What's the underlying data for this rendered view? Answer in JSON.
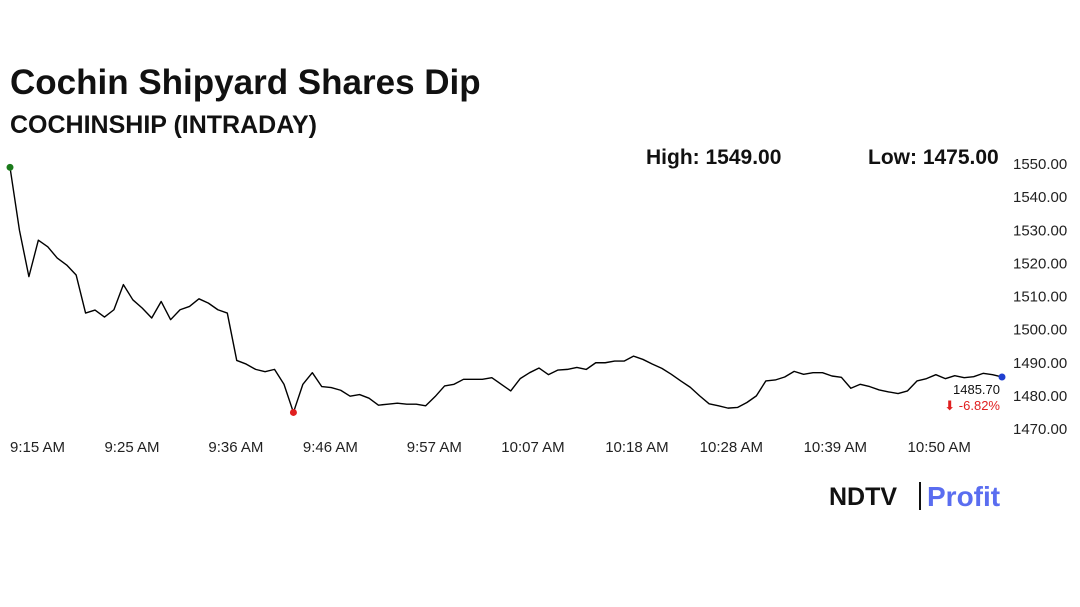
{
  "chart_data": {
    "type": "line",
    "title": "Cochin Shipyard Shares Dip",
    "subtitle": "COCHINSHIP (INTRADAY)",
    "high_text": "High: 1549.00",
    "low_text": "Low: 1475.00",
    "last_label": "1485.70",
    "change_label": "⬇ -6.82%",
    "brand": {
      "name": "NDTV",
      "product": "Profit"
    },
    "x": [
      "9:15 AM",
      "9:16 AM",
      "9:17 AM",
      "9:18 AM",
      "9:19 AM",
      "9:20 AM",
      "9:21 AM",
      "9:22 AM",
      "9:23 AM",
      "9:24 AM",
      "9:25 AM",
      "9:26 AM",
      "9:27 AM",
      "9:28 AM",
      "9:29 AM",
      "9:30 AM",
      "9:31 AM",
      "9:32 AM",
      "9:33 AM",
      "9:34 AM",
      "9:35 AM",
      "9:36 AM",
      "9:37 AM",
      "9:38 AM",
      "9:39 AM",
      "9:40 AM",
      "9:41 AM",
      "9:42 AM",
      "9:43 AM",
      "9:44 AM",
      "9:45 AM",
      "9:46 AM",
      "9:47 AM",
      "9:48 AM",
      "9:49 AM",
      "9:50 AM",
      "9:51 AM",
      "9:52 AM",
      "9:53 AM",
      "9:54 AM",
      "9:55 AM",
      "9:56 AM",
      "9:57 AM",
      "9:58 AM",
      "9:59 AM",
      "10:00 AM",
      "10:01 AM",
      "10:02 AM",
      "10:03 AM",
      "10:04 AM",
      "10:05 AM",
      "10:06 AM",
      "10:07 AM",
      "10:08 AM",
      "10:09 AM",
      "10:10 AM",
      "10:11 AM",
      "10:12 AM",
      "10:13 AM",
      "10:14 AM",
      "10:15 AM",
      "10:16 AM",
      "10:17 AM",
      "10:18 AM",
      "10:19 AM",
      "10:20 AM",
      "10:21 AM",
      "10:22 AM",
      "10:23 AM",
      "10:24 AM",
      "10:25 AM",
      "10:26 AM",
      "10:27 AM",
      "10:28 AM",
      "10:29 AM",
      "10:30 AM",
      "10:31 AM",
      "10:32 AM",
      "10:33 AM",
      "10:34 AM",
      "10:35 AM",
      "10:36 AM",
      "10:37 AM",
      "10:38 AM",
      "10:39 AM",
      "10:40 AM",
      "10:41 AM",
      "10:42 AM",
      "10:43 AM",
      "10:44 AM",
      "10:45 AM",
      "10:46 AM",
      "10:47 AM",
      "10:48 AM",
      "10:49 AM",
      "10:50 AM",
      "10:51 AM",
      "10:52 AM",
      "10:53 AM",
      "10:54 AM",
      "10:55 AM",
      "10:56 AM",
      "10:57 AM",
      "10:58 AM",
      "10:59 AM",
      "11:00 AM"
    ],
    "series": [
      {
        "name": "COCHINSHIP",
        "color": "#000000",
        "values": [
          1549,
          1530,
          1516,
          1527,
          1525,
          1521.6,
          1519.5,
          1516.5,
          1505,
          1505.9,
          1503.8,
          1506,
          1513.6,
          1509,
          1506.5,
          1503.5,
          1508.5,
          1503,
          1506,
          1507,
          1509.3,
          1508,
          1506,
          1505,
          1490.7,
          1489.6,
          1488,
          1487.3,
          1488,
          1483.5,
          1475,
          1483.5,
          1487,
          1482.8,
          1482.5,
          1481.7,
          1479.9,
          1480.4,
          1479.3,
          1477.2,
          1477.5,
          1477.8,
          1477.5,
          1477.5,
          1477,
          1479.8,
          1483,
          1483.5,
          1485,
          1485,
          1485,
          1485.5,
          1483.5,
          1481.5,
          1485.2,
          1487,
          1488.4,
          1486.4,
          1487.8,
          1488,
          1488.6,
          1488,
          1490,
          1490,
          1490.5,
          1490.5,
          1492,
          1491,
          1489.6,
          1488.3,
          1486.5,
          1484.5,
          1482.6,
          1480,
          1477.6,
          1477,
          1476.3,
          1476.5,
          1478,
          1480,
          1484.5,
          1484.8,
          1485.7,
          1487.4,
          1486.5,
          1487,
          1487,
          1486,
          1485.6,
          1482.3,
          1483.5,
          1482.8,
          1481.8,
          1481.2,
          1480.7,
          1481.5,
          1484.5,
          1485.2,
          1486.4,
          1485.2,
          1486.1,
          1485.5,
          1485.8,
          1486.8,
          1486.4,
          1485.7
        ]
      }
    ],
    "high_color": "#1a7a1a",
    "low_color": "#e02020",
    "last_color": "#1f3fd0",
    "change_color": "#e02020",
    "xlim": [
      "9:15 AM",
      "11:00 AM"
    ],
    "xticks": [
      "9:15 AM",
      "9:25 AM",
      "9:36 AM",
      "9:46 AM",
      "9:57 AM",
      "10:07 AM",
      "10:18 AM",
      "10:28 AM",
      "10:39 AM",
      "10:50 AM"
    ],
    "ylim": [
      1470,
      1550
    ],
    "yticks": [
      {
        "value": 1470,
        "label": "1470.00"
      },
      {
        "value": 1480,
        "label": "1480.00"
      },
      {
        "value": 1490,
        "label": "1490.00"
      },
      {
        "value": 1500,
        "label": "1500.00"
      },
      {
        "value": 1510,
        "label": "1510.00"
      },
      {
        "value": 1520,
        "label": "1520.00"
      },
      {
        "value": 1530,
        "label": "1530.00"
      },
      {
        "value": 1540,
        "label": "1540.00"
      },
      {
        "value": 1550,
        "label": "1550.00"
      }
    ],
    "grid": false
  }
}
